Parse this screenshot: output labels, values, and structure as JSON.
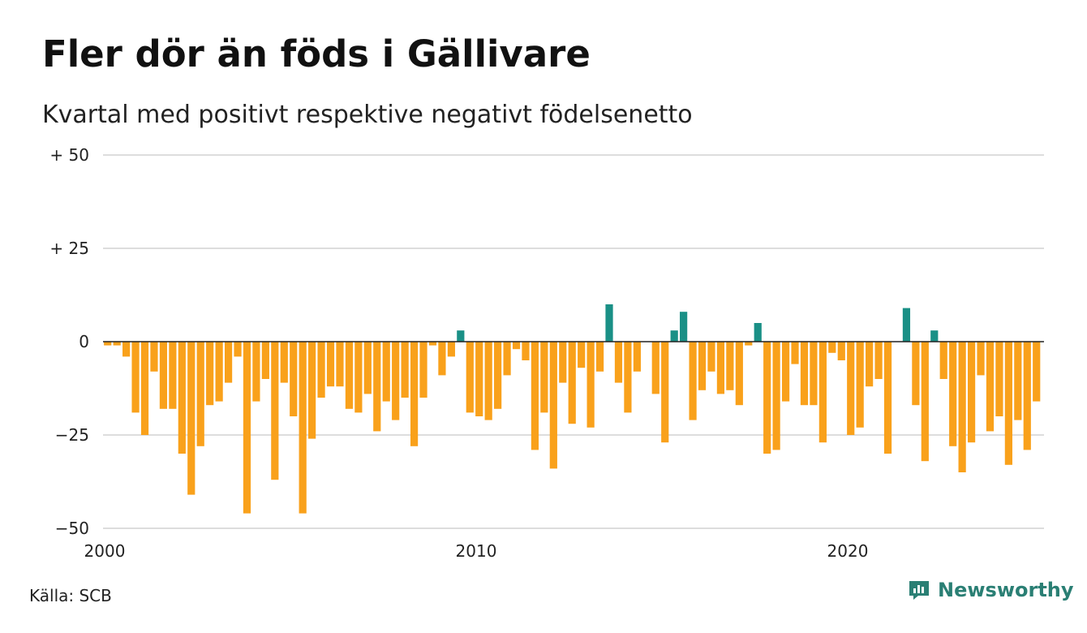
{
  "title": "Fler dör än föds i Gällivare",
  "subtitle": "Kvartal med positivt respektive negativt födelsenetto",
  "source": "Källa: SCB",
  "brand": {
    "name": "Newsworthy",
    "icon": "newsworthy-logo-icon",
    "color": "#2a7f74"
  },
  "colors": {
    "positive": "#1a9086",
    "negative": "#f9a11b",
    "grid": "#dddddd",
    "zero_line": "#222222"
  },
  "chart_data": {
    "type": "bar",
    "x_start": "2000 Q1",
    "x_ticks": [
      "2000",
      "2010",
      "2020"
    ],
    "y_ticks": [
      {
        "value": 50,
        "label": "+ 50"
      },
      {
        "value": 25,
        "label": "+ 25"
      },
      {
        "value": 0,
        "label": "0"
      },
      {
        "value": -25,
        "label": "−25"
      },
      {
        "value": -50,
        "label": "−50"
      }
    ],
    "ylim": [
      -50,
      50
    ],
    "grid": true,
    "values": [
      -1,
      -1,
      -4,
      -19,
      -25,
      -8,
      -18,
      -18,
      -30,
      -41,
      -28,
      -17,
      -16,
      -11,
      -4,
      -46,
      -16,
      -10,
      -37,
      -11,
      -20,
      -46,
      -26,
      -15,
      -12,
      -12,
      -18,
      -19,
      -14,
      -24,
      -16,
      -21,
      -15,
      -28,
      -15,
      -1,
      -9,
      -4,
      3,
      -19,
      -20,
      -21,
      -18,
      -9,
      -2,
      -5,
      -29,
      -19,
      -34,
      -11,
      -22,
      -7,
      -23,
      -8,
      10,
      -11,
      -19,
      -8,
      0,
      -14,
      -27,
      3,
      8,
      -21,
      -13,
      -8,
      -14,
      -13,
      -17,
      -1,
      5,
      -30,
      -29,
      -16,
      -6,
      -17,
      -17,
      -27,
      -3,
      -5,
      -25,
      -23,
      -12,
      -10,
      -30,
      0,
      9,
      -17,
      -32,
      3,
      -10,
      -28,
      -35,
      -27,
      -9,
      -24,
      -20,
      -33,
      -21,
      -29,
      -16
    ]
  }
}
